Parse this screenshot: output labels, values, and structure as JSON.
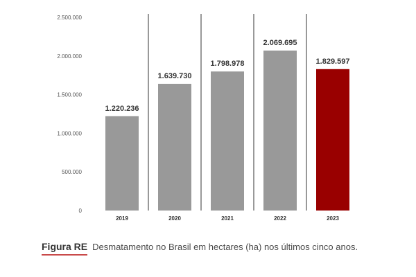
{
  "chart_data": {
    "type": "bar",
    "categories": [
      "2019",
      "2020",
      "2021",
      "2022",
      "2023"
    ],
    "values": [
      1220236,
      1639730,
      1798978,
      2069695,
      1829597
    ],
    "data_labels": [
      "1.220.236",
      "1.639.730",
      "1.798.978",
      "2.069.695",
      "1.829.597"
    ],
    "yticks": [
      0,
      500000,
      1000000,
      1500000,
      2000000,
      2500000
    ],
    "ytick_labels": [
      "0",
      "500.000",
      "1.000.000",
      "1.500.000",
      "2.000.000",
      "2.500.000"
    ],
    "ylim": [
      0,
      2500000
    ],
    "grid": false,
    "separators": true,
    "colors": {
      "default_bar": "#999999",
      "highlight_bar": "#990000",
      "separator": "#333333"
    },
    "highlight_index": 4,
    "title": "",
    "xlabel": "",
    "ylabel": ""
  },
  "caption": {
    "label": "Figura RE",
    "text": "Desmatamento no Brasil em hectares (ha) nos últimos cinco anos."
  }
}
